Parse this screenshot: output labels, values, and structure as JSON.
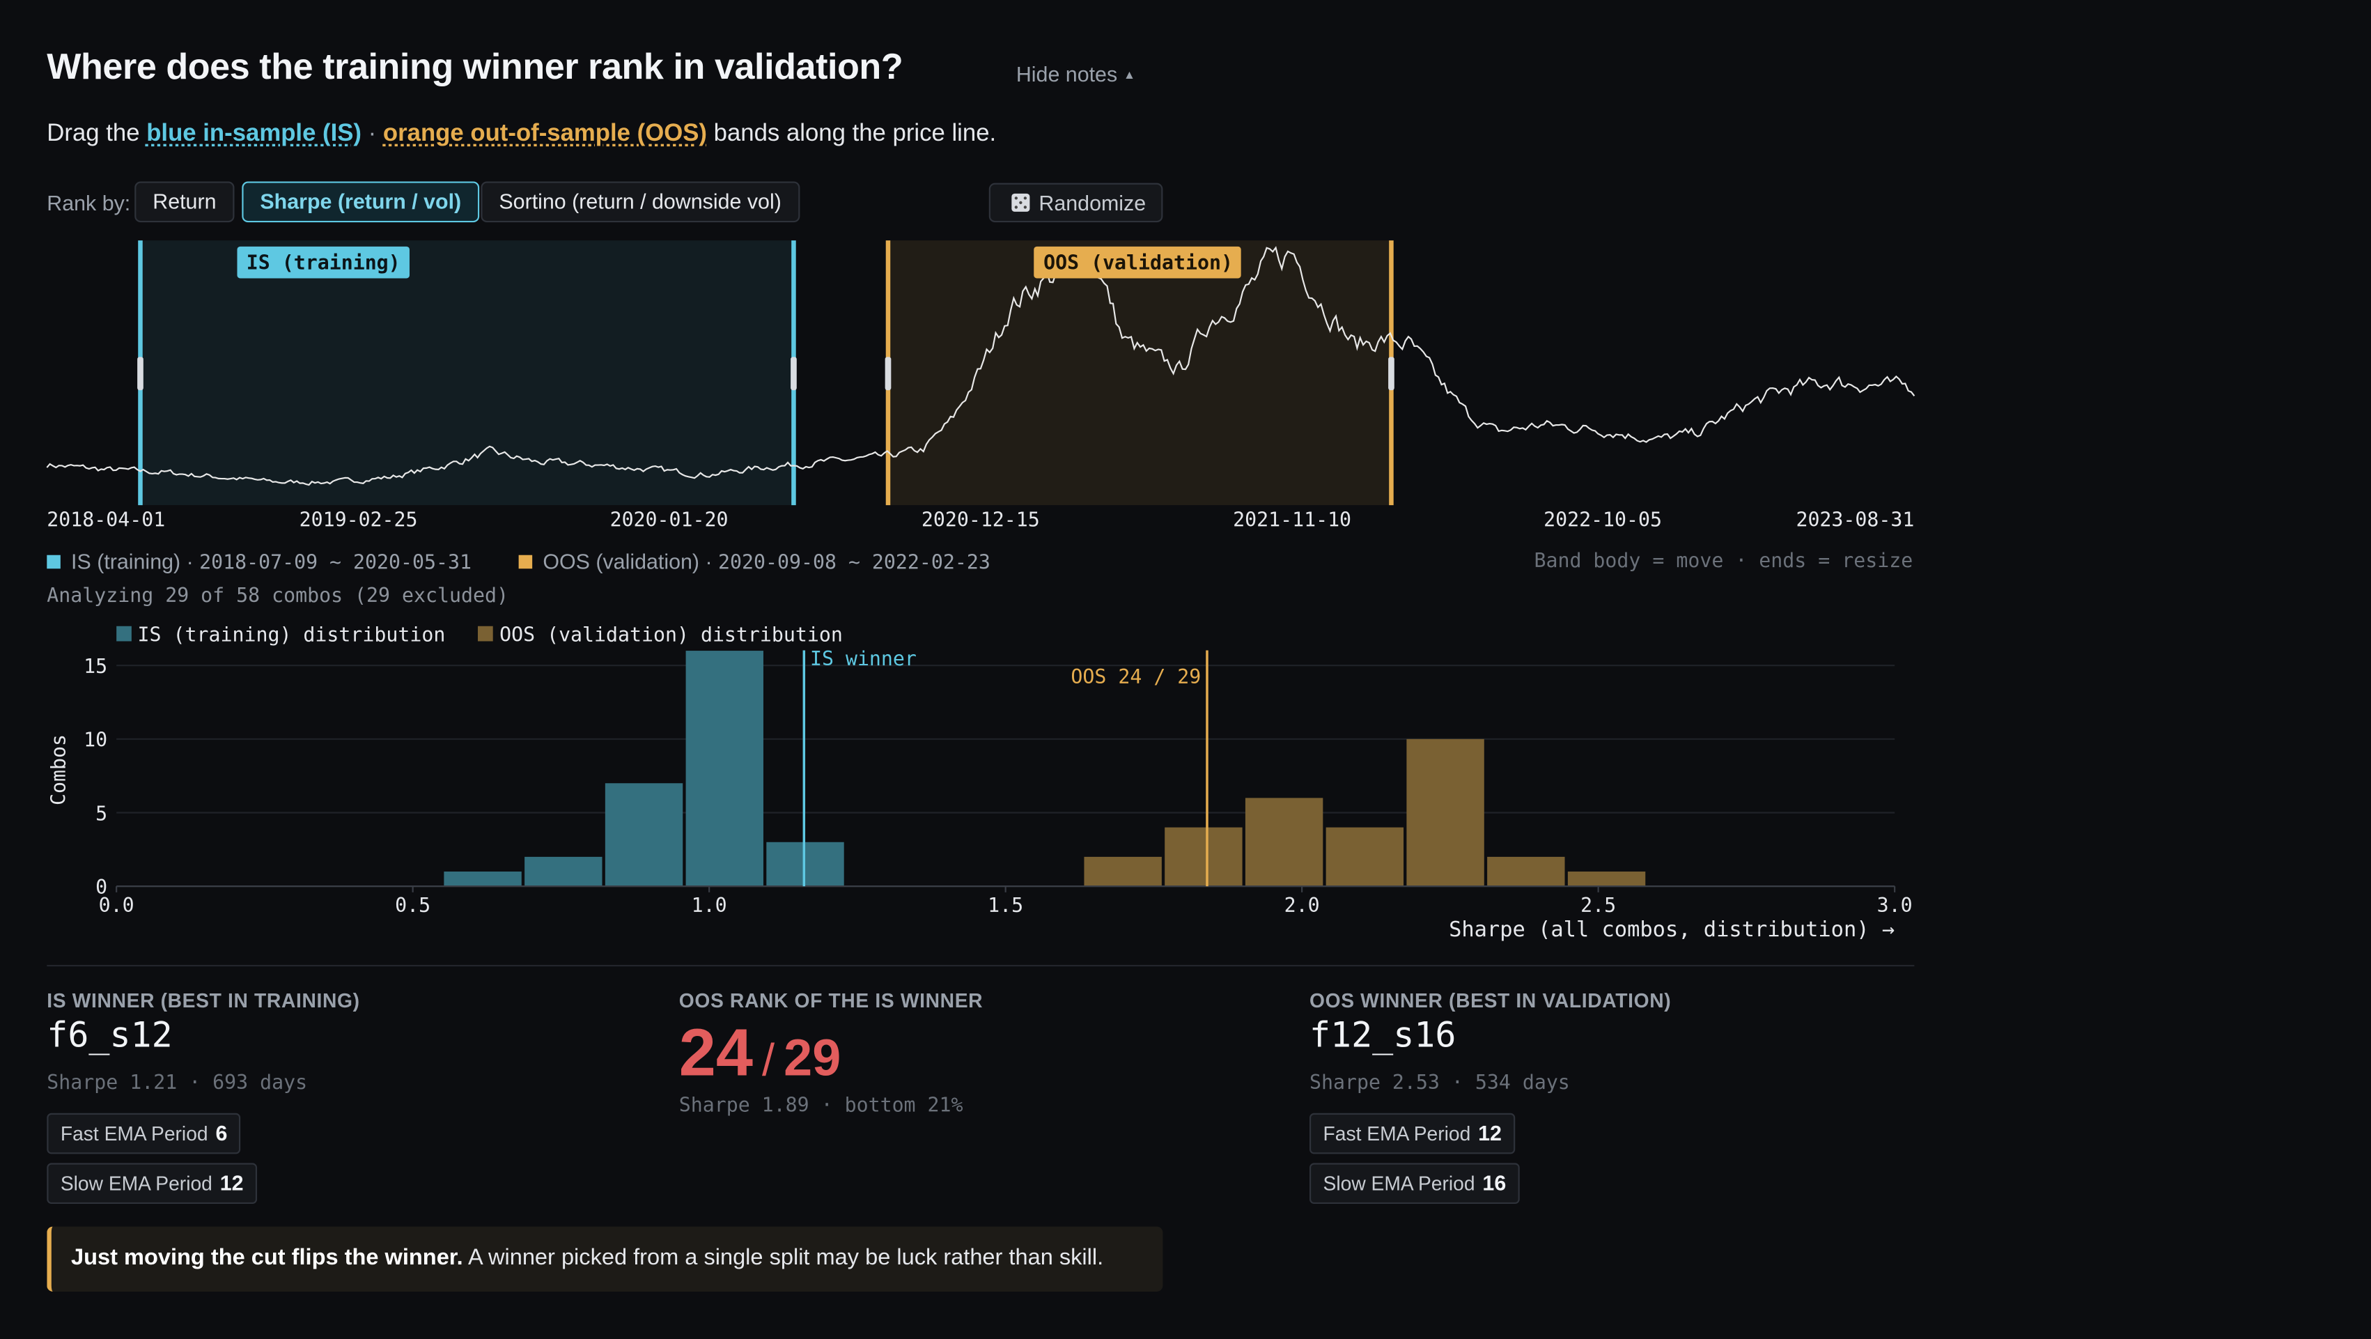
{
  "header": {
    "title": "Where does the training winner rank in validation?",
    "hide_notes": "Hide notes",
    "subtitle_prefix": "Drag the",
    "subtitle_is": "blue in-sample (IS)",
    "subtitle_sep": "·",
    "subtitle_oos": "orange out-of-sample (OOS)",
    "subtitle_suffix": "bands along the price line."
  },
  "controls": {
    "rank_by_label": "Rank by:",
    "options": [
      "Return",
      "Sharpe (return / vol)",
      "Sortino (return / downside vol)"
    ],
    "selected": "Sharpe (return / vol)",
    "randomize": "Randomize"
  },
  "colors": {
    "is": "#5ec8e2",
    "oos": "#e6ad4f",
    "is_hist": "#34707f",
    "oos_hist": "#7a6133",
    "price": "#e8e8e8",
    "rank": "#e25d5d"
  },
  "price_chart": {
    "is_band_label": "IS (training)",
    "oos_band_label": "OOS (validation)",
    "is_range": [
      "2018-07-09",
      "2020-05-31"
    ],
    "oos_range": [
      "2020-09-08",
      "2022-02-23"
    ],
    "date_start": "2018-04-01",
    "date_end": "2023-08-31",
    "x_ticks": [
      "2018-04-01",
      "2019-02-25",
      "2020-01-20",
      "2020-12-15",
      "2021-11-10",
      "2022-10-05",
      "2023-08-31"
    ],
    "price_series_dates": [
      "2018-04-01",
      "2018-06-01",
      "2018-08-01",
      "2018-10-01",
      "2018-12-01",
      "2019-02-01",
      "2019-04-01",
      "2019-06-01",
      "2019-07-15",
      "2019-09-01",
      "2019-11-01",
      "2020-01-01",
      "2020-03-01",
      "2020-05-01",
      "2020-07-01",
      "2020-09-01",
      "2020-10-15",
      "2020-11-15",
      "2020-12-15",
      "2021-01-15",
      "2021-02-15",
      "2021-03-15",
      "2021-04-15",
      "2021-05-15",
      "2021-06-15",
      "2021-07-15",
      "2021-08-15",
      "2021-09-15",
      "2021-10-15",
      "2021-11-10",
      "2021-12-15",
      "2022-01-15",
      "2022-02-15",
      "2022-03-15",
      "2022-04-15",
      "2022-05-15",
      "2022-06-15",
      "2022-08-01",
      "2022-10-01",
      "2022-12-01",
      "2023-01-15",
      "2023-03-01",
      "2023-04-15",
      "2023-06-01",
      "2023-07-15",
      "2023-08-31"
    ],
    "price_series_values": [
      0.12,
      0.1,
      0.09,
      0.07,
      0.05,
      0.05,
      0.07,
      0.12,
      0.17,
      0.13,
      0.12,
      0.1,
      0.08,
      0.11,
      0.13,
      0.15,
      0.18,
      0.3,
      0.5,
      0.75,
      0.85,
      0.9,
      0.95,
      0.62,
      0.55,
      0.5,
      0.7,
      0.78,
      0.92,
      0.97,
      0.75,
      0.6,
      0.62,
      0.6,
      0.45,
      0.32,
      0.25,
      0.28,
      0.26,
      0.22,
      0.25,
      0.35,
      0.42,
      0.45,
      0.44,
      0.43
    ],
    "legend_is_label": "IS (training)",
    "legend_is_range": "2018-07-09 ~ 2020-05-31",
    "legend_oos_label": "OOS (validation)",
    "legend_oos_range": "2020-09-08 ~ 2022-02-23",
    "legend_sep": "·",
    "hint": "Band body = move · ends = resize"
  },
  "analyzing": "Analyzing 29 of 58 combos (29 excluded)",
  "chart_data": {
    "type": "bar",
    "title": "",
    "xlabel": "Sharpe (all combos, distribution) →",
    "ylabel": "Combos",
    "xlim": [
      0,
      3.0
    ],
    "ylim": [
      0,
      15
    ],
    "x_ticks": [
      "0.0",
      "0.5",
      "1.0",
      "1.5",
      "2.0",
      "2.5",
      "3.0"
    ],
    "y_ticks": [
      "0",
      "5",
      "10",
      "15"
    ],
    "bin_width": 0.136,
    "series": [
      {
        "name": "IS (training) distribution",
        "bin_starts": [
          0.55,
          0.686,
          0.822,
          0.958,
          1.094
        ],
        "values": [
          1,
          2,
          7,
          16,
          3
        ]
      },
      {
        "name": "OOS (validation) distribution",
        "bin_starts": [
          1.63,
          1.766,
          1.902,
          2.038,
          2.174,
          2.31,
          2.446
        ],
        "values": [
          2,
          4,
          6,
          4,
          10,
          2,
          1
        ]
      }
    ],
    "annotations": [
      {
        "label": "IS winner",
        "x": 1.16
      },
      {
        "label": "OOS 24 / 29",
        "x": 1.84
      }
    ]
  },
  "cards": {
    "is_winner": {
      "label": "IS WINNER (BEST IN TRAINING)",
      "code": "f6_s12",
      "meta": "Sharpe 1.21 · 693 days",
      "params": [
        {
          "name": "Fast EMA Period",
          "value": "6"
        },
        {
          "name": "Slow EMA Period",
          "value": "12"
        }
      ]
    },
    "oos_rank": {
      "label": "OOS RANK OF THE IS WINNER",
      "rank": "24",
      "slash": "/",
      "total": "29",
      "meta": "Sharpe 1.89 · bottom 21%"
    },
    "oos_winner": {
      "label": "OOS WINNER (BEST IN VALIDATION)",
      "code": "f12_s16",
      "meta": "Sharpe 2.53 · 534 days",
      "params": [
        {
          "name": "Fast EMA Period",
          "value": "12"
        },
        {
          "name": "Slow EMA Period",
          "value": "16"
        }
      ]
    }
  },
  "note": {
    "bold": "Just moving the cut flips the winner.",
    "text": "A winner picked from a single split may be luck rather than skill."
  }
}
